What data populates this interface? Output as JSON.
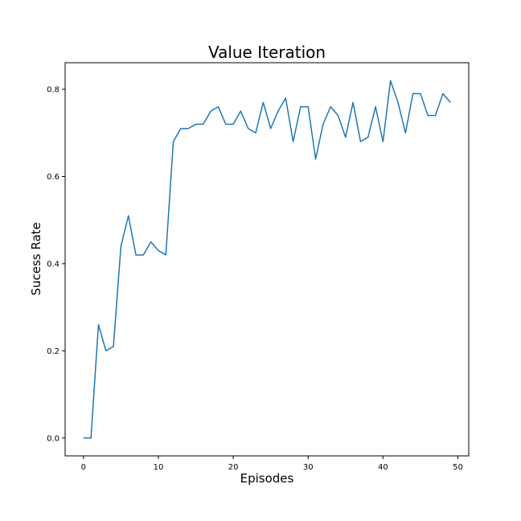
{
  "chart_data": {
    "type": "line",
    "title": "Value Iteration",
    "xlabel": "Episodes",
    "ylabel": "Sucess Rate",
    "xlim": [
      -2.45,
      51.45
    ],
    "ylim": [
      -0.041,
      0.861
    ],
    "xticks": [
      0,
      10,
      20,
      30,
      40,
      50
    ],
    "yticks": [
      0.0,
      0.2,
      0.4,
      0.6,
      0.8
    ],
    "xtick_labels": [
      "0",
      "10",
      "20",
      "30",
      "40",
      "50"
    ],
    "ytick_labels": [
      "0.0",
      "0.2",
      "0.4",
      "0.6",
      "0.8"
    ],
    "grid": false,
    "series": [
      {
        "color": "#1f77b4",
        "x": [
          0,
          1,
          2,
          3,
          4,
          5,
          6,
          7,
          8,
          9,
          10,
          11,
          12,
          13,
          14,
          15,
          16,
          17,
          18,
          19,
          20,
          21,
          22,
          23,
          24,
          25,
          26,
          27,
          28,
          29,
          30,
          31,
          32,
          33,
          34,
          35,
          36,
          37,
          38,
          39,
          40,
          41,
          42,
          43,
          44,
          45,
          46,
          47,
          48,
          49
        ],
        "values": [
          0.0,
          0.0,
          0.26,
          0.2,
          0.21,
          0.44,
          0.51,
          0.42,
          0.42,
          0.45,
          0.43,
          0.42,
          0.68,
          0.71,
          0.71,
          0.72,
          0.72,
          0.75,
          0.76,
          0.72,
          0.72,
          0.75,
          0.71,
          0.7,
          0.77,
          0.71,
          0.75,
          0.78,
          0.68,
          0.76,
          0.76,
          0.64,
          0.72,
          0.76,
          0.74,
          0.69,
          0.77,
          0.68,
          0.69,
          0.76,
          0.68,
          0.82,
          0.77,
          0.7,
          0.79,
          0.79,
          0.74,
          0.74,
          0.79,
          0.77
        ]
      }
    ]
  }
}
